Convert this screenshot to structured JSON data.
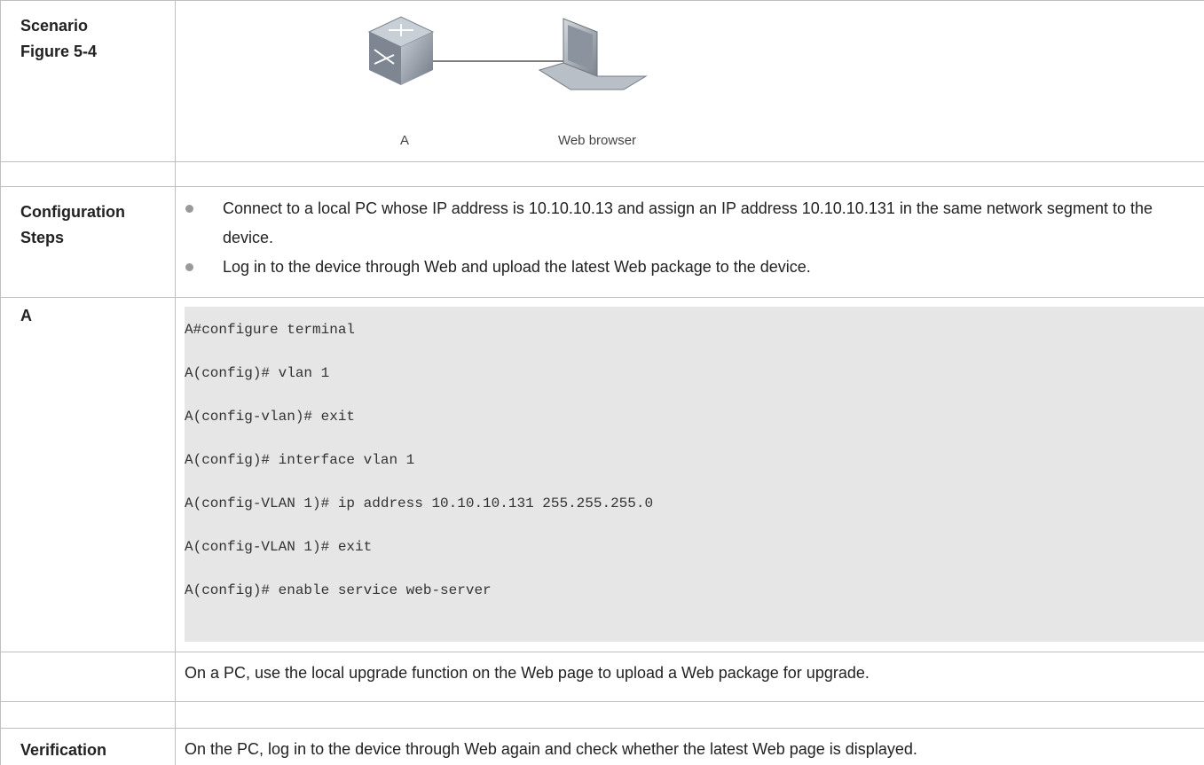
{
  "scenario": {
    "label": [
      "Scenario",
      "Figure 5-4"
    ],
    "diagram": {
      "nodes": [
        {
          "label": "A"
        },
        {
          "label": "Web browser"
        }
      ]
    }
  },
  "config_steps": {
    "label": [
      "Configuration",
      "Steps"
    ],
    "bullets": [
      "Connect to a local PC whose IP address is 10.10.10.13 and assign an IP address 10.10.10.131 in the same network segment to the device.",
      "Log in to the device through Web and upload the latest Web package to the device."
    ]
  },
  "config": {
    "label": "A",
    "code": [
      "A#configure terminal",
      "A(config)# vlan 1",
      "A(config-vlan)# exit",
      "A(config)# interface vlan 1",
      "A(config-VLAN 1)# ip address 10.10.10.131 255.255.255.0",
      "A(config-VLAN 1)# exit",
      "A(config)# enable service web-server"
    ]
  },
  "note": "On a PC, use the local upgrade function on the Web page to upload a Web package for upgrade.",
  "verification": {
    "label": "Verification",
    "text": "On the PC, log in to the device through Web again and check whether the latest Web page is displayed."
  }
}
